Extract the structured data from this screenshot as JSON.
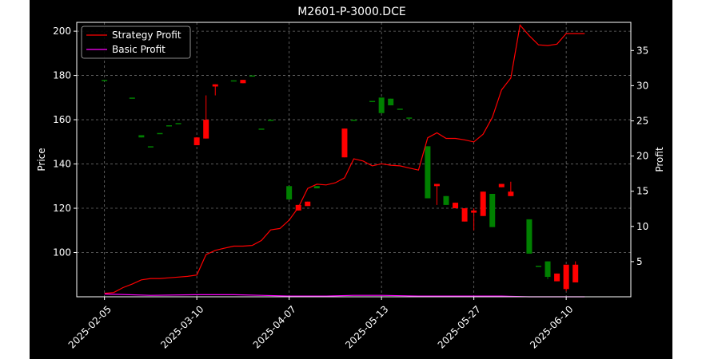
{
  "chart_data": {
    "type": "candlestick+line",
    "title": "M2601-P-3000.DCE",
    "ylabel_left": "Price",
    "ylabel_right": "Profit",
    "xlabel": "",
    "ylim_left": [
      80,
      204
    ],
    "ylim_right": [
      0,
      39
    ],
    "left_ticks": [
      100,
      120,
      140,
      160,
      180,
      200
    ],
    "right_ticks": [
      5,
      10,
      15,
      20,
      25,
      30,
      35
    ],
    "x_tick_labels": [
      "2025-02-05",
      "2025-03-10",
      "2025-04-07",
      "2025-05-13",
      "2025-05-27",
      "2025-06-10"
    ],
    "x_tick_index": [
      0,
      10,
      20,
      30,
      40,
      50
    ],
    "x_range_index": [
      -3,
      57
    ],
    "grid": true,
    "legend_position": "top-left",
    "colors": {
      "background": "#000000",
      "text": "#ffffff",
      "up": "#008000",
      "down": "#ff0000",
      "strategy_line": "#ff0000",
      "basic_line": "#ff00ff",
      "grid": "#888888"
    },
    "candles": [
      {
        "i": 0,
        "open": 178.0,
        "close": 178.0,
        "high": 178.0,
        "low": 178.0
      },
      {
        "i": 3,
        "open": 170.0,
        "close": 170.0,
        "high": 170.0,
        "low": 170.0
      },
      {
        "i": 4,
        "open": 152.0,
        "close": 153.0,
        "high": 153.0,
        "low": 152.0
      },
      {
        "i": 5,
        "open": 148.0,
        "close": 148.0,
        "high": 148.0,
        "low": 148.0
      },
      {
        "i": 6,
        "open": 154.0,
        "close": 154.0,
        "high": 154.0,
        "low": 154.0
      },
      {
        "i": 7,
        "open": 157.5,
        "close": 157.5,
        "high": 157.5,
        "low": 157.5
      },
      {
        "i": 8,
        "open": 158.5,
        "close": 158.5,
        "high": 158.5,
        "low": 158.5
      },
      {
        "i": 10,
        "open": 152.0,
        "close": 148.5,
        "high": 152.0,
        "low": 148.5
      },
      {
        "i": 11,
        "open": 160.0,
        "close": 151.5,
        "high": 171.0,
        "low": 151.5
      },
      {
        "i": 12,
        "open": 176.0,
        "close": 175.0,
        "high": 176.0,
        "low": 171.0
      },
      {
        "i": 14,
        "open": 177.8,
        "close": 177.8,
        "high": 177.8,
        "low": 177.8
      },
      {
        "i": 15,
        "open": 178.0,
        "close": 176.5,
        "high": 178.0,
        "low": 176.5
      },
      {
        "i": 16,
        "open": 180.0,
        "close": 180.0,
        "high": 180.0,
        "low": 180.0
      },
      {
        "i": 17,
        "open": 156.0,
        "close": 156.0,
        "high": 156.0,
        "low": 156.0
      },
      {
        "i": 18,
        "open": 160.0,
        "close": 160.0,
        "high": 160.0,
        "low": 160.0
      },
      {
        "i": 20,
        "open": 124.0,
        "close": 130.0,
        "high": 130.0,
        "low": 124.0
      },
      {
        "i": 21,
        "open": 121.5,
        "close": 119.0,
        "high": 121.5,
        "low": 119.0
      },
      {
        "i": 22,
        "open": 123.0,
        "close": 121.0,
        "high": 123.0,
        "low": 121.0
      },
      {
        "i": 23,
        "open": 129.0,
        "close": 130.0,
        "high": 130.0,
        "low": 129.0
      },
      {
        "i": 26,
        "open": 156.0,
        "close": 143.0,
        "high": 156.0,
        "low": 143.0
      },
      {
        "i": 27,
        "open": 160.0,
        "close": 160.0,
        "high": 160.0,
        "low": 160.0
      },
      {
        "i": 29,
        "open": 168.5,
        "close": 168.5,
        "high": 168.5,
        "low": 168.5
      },
      {
        "i": 30,
        "open": 163.0,
        "close": 170.0,
        "high": 170.0,
        "low": 163.0
      },
      {
        "i": 31,
        "open": 166.5,
        "close": 169.5,
        "high": 169.5,
        "low": 166.5
      },
      {
        "i": 32,
        "open": 165.0,
        "close": 165.0,
        "high": 165.0,
        "low": 165.0
      },
      {
        "i": 33,
        "open": 161.0,
        "close": 161.0,
        "high": 161.0,
        "low": 161.0
      },
      {
        "i": 35,
        "open": 124.5,
        "close": 148.0,
        "high": 148.0,
        "low": 124.5
      },
      {
        "i": 36,
        "open": 131.0,
        "close": 130.0,
        "high": 131.0,
        "low": 121.5
      },
      {
        "i": 37,
        "open": 121.5,
        "close": 125.5,
        "high": 125.5,
        "low": 121.5
      },
      {
        "i": 38,
        "open": 122.5,
        "close": 120.0,
        "high": 122.5,
        "low": 120.0
      },
      {
        "i": 39,
        "open": 120.0,
        "close": 114.0,
        "high": 120.0,
        "low": 114.0
      },
      {
        "i": 40,
        "open": 119.0,
        "close": 118.0,
        "high": 120.0,
        "low": 110.0
      },
      {
        "i": 41,
        "open": 127.5,
        "close": 116.5,
        "high": 127.5,
        "low": 116.5
      },
      {
        "i": 42,
        "open": 111.5,
        "close": 126.5,
        "high": 126.5,
        "low": 111.5
      },
      {
        "i": 43,
        "open": 131.0,
        "close": 129.5,
        "high": 131.0,
        "low": 129.5
      },
      {
        "i": 44,
        "open": 127.5,
        "close": 125.5,
        "high": 132.0,
        "low": 125.5
      },
      {
        "i": 46,
        "open": 99.5,
        "close": 115.0,
        "high": 115.0,
        "low": 99.5
      },
      {
        "i": 47,
        "open": 94.0,
        "close": 94.0,
        "high": 94.0,
        "low": 94.0
      },
      {
        "i": 48,
        "open": 89.0,
        "close": 96.0,
        "high": 96.0,
        "low": 88.0
      },
      {
        "i": 49,
        "open": 90.5,
        "close": 87.0,
        "high": 90.5,
        "low": 87.0
      },
      {
        "i": 50,
        "open": 94.5,
        "close": 83.5,
        "high": 94.5,
        "low": 82.5
      },
      {
        "i": 51,
        "open": 94.5,
        "close": 86.5,
        "high": 96.0,
        "low": 86.5
      }
    ],
    "series": [
      {
        "name": "Strategy Profit",
        "axis": "right",
        "x": [
          0,
          1,
          2,
          3,
          4,
          5,
          6,
          7,
          8,
          9,
          10,
          11,
          12,
          13,
          14,
          15,
          16,
          17,
          18,
          19,
          20,
          21,
          22,
          23,
          24,
          25,
          26,
          27,
          28,
          29,
          30,
          31,
          32,
          33,
          34,
          35,
          36,
          37,
          38,
          39,
          40,
          41,
          42,
          43,
          44,
          45,
          46,
          47,
          48,
          49,
          50,
          51,
          52
        ],
        "values": [
          0.5,
          0.6,
          1.3,
          1.8,
          2.4,
          2.6,
          2.6,
          2.7,
          2.8,
          2.9,
          3.1,
          6.0,
          6.6,
          6.9,
          7.2,
          7.2,
          7.3,
          8.0,
          9.5,
          9.7,
          10.9,
          12.7,
          15.4,
          16.0,
          15.9,
          16.2,
          16.9,
          19.6,
          19.3,
          18.6,
          18.9,
          18.7,
          18.6,
          18.3,
          18.0,
          22.6,
          23.3,
          22.5,
          22.5,
          22.3,
          22.0,
          23.1,
          25.5,
          29.4,
          31.1,
          38.6,
          37.1,
          35.8,
          35.7,
          35.9,
          37.4,
          37.4,
          37.4
        ]
      },
      {
        "name": "Basic Profit",
        "axis": "right",
        "x": [
          0,
          5,
          10,
          14,
          17,
          20,
          24,
          27,
          30,
          34,
          37,
          40,
          43,
          46,
          49,
          52
        ],
        "values": [
          0.4,
          0.2,
          0.3,
          0.3,
          0.2,
          0.1,
          0.1,
          0.2,
          0.2,
          0.1,
          0.1,
          0.1,
          0.1,
          0.0,
          0.0,
          0.0
        ]
      }
    ]
  }
}
